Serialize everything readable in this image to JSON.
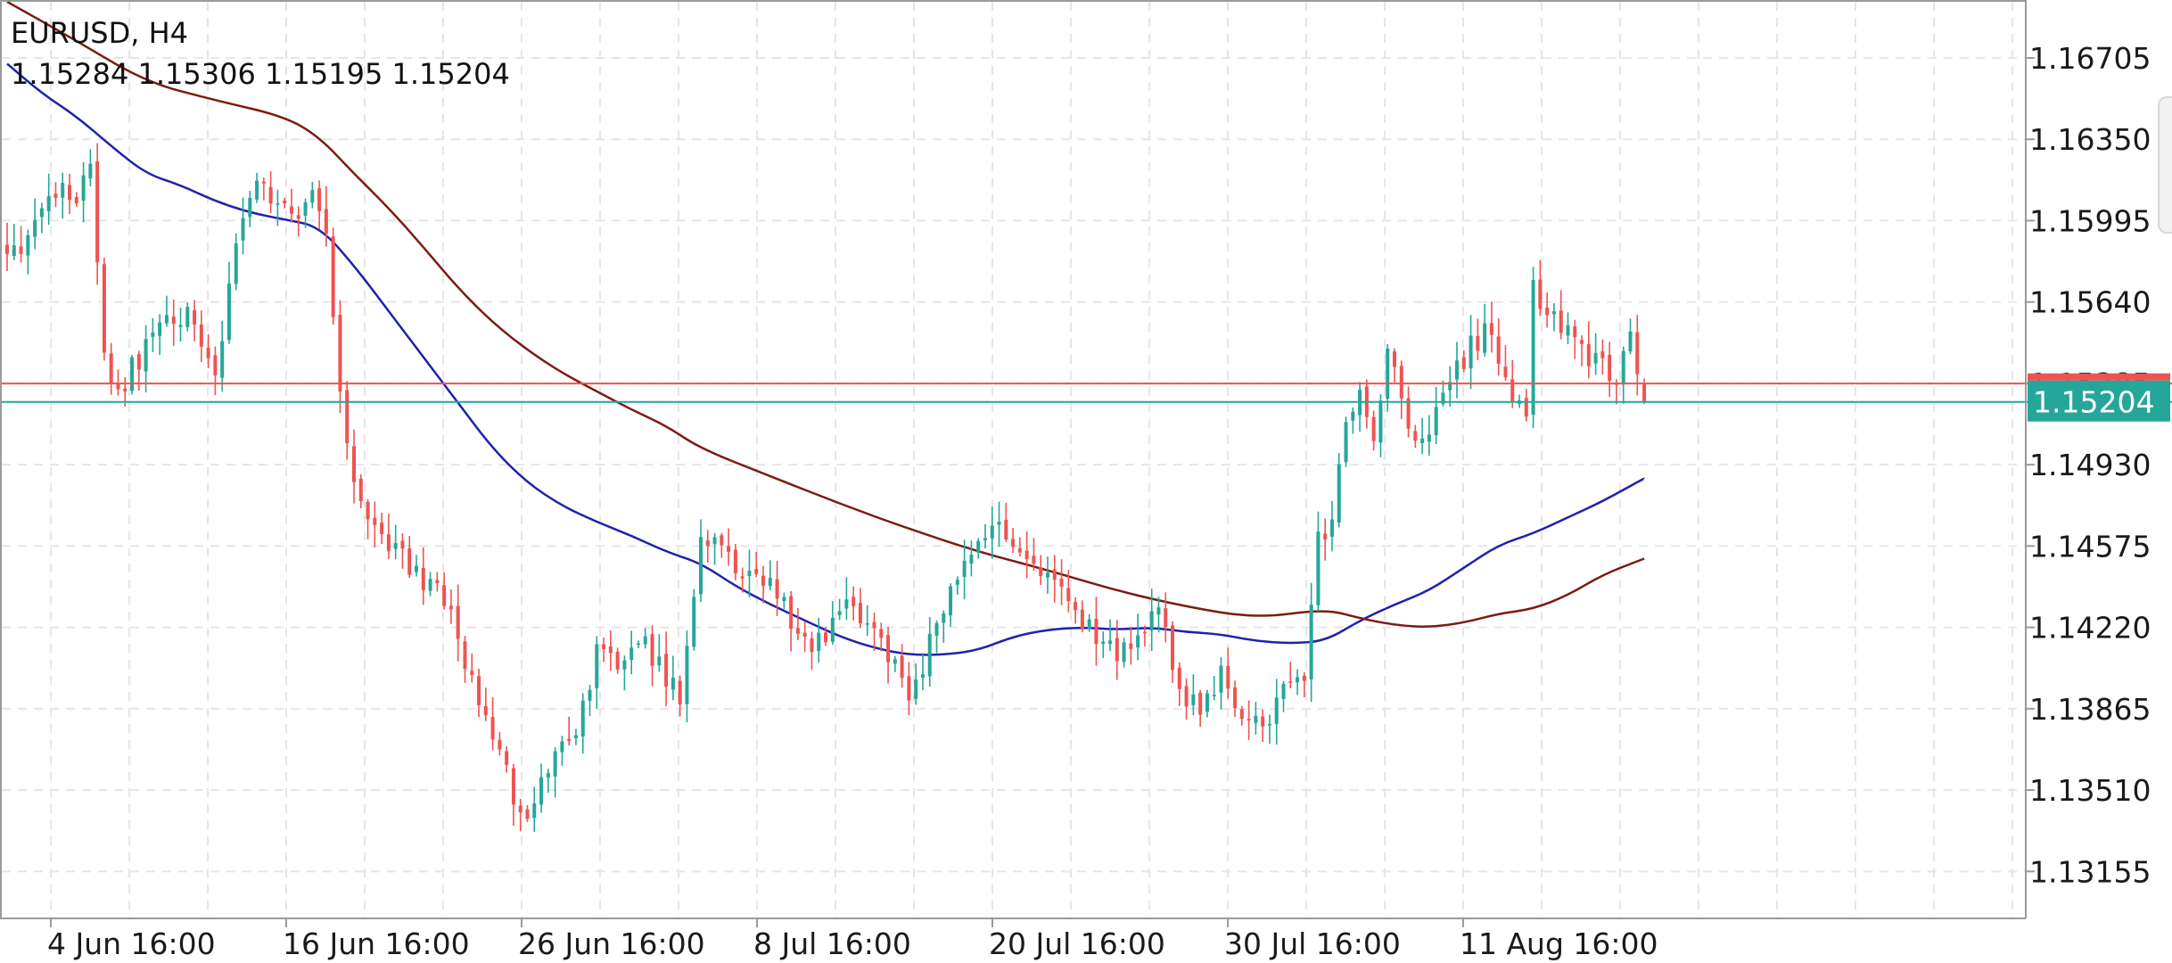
{
  "header": {
    "symbol_timeframe": "EURUSD, H4",
    "ohlc": "1.15284 1.15306 1.15195 1.15204"
  },
  "price_axis": {
    "ticks": [
      "1.16705",
      "1.16350",
      "1.15995",
      "1.15640",
      "1.15285",
      "1.14930",
      "1.14575",
      "1.14220",
      "1.13865",
      "1.13510",
      "1.13155"
    ],
    "current_price": "1.15204"
  },
  "time_axis": {
    "ticks": [
      "4 Jun 16:00",
      "16 Jun 16:00",
      "26 Jun 16:00",
      "8 Jul 16:00",
      "20 Jul 16:00",
      "30 Jul 16:00",
      "11 Aug 16:00"
    ]
  },
  "colors": {
    "bull": "#26a69a",
    "bear": "#ef5350",
    "ma_fast": "#1e22aa",
    "ma_slow": "#7b1b11",
    "bid_line": "#26a69a",
    "ask_line": "#ef5350",
    "price_tag_bg": "#26a69a",
    "grid": "#e6e6e6"
  },
  "chart_data": {
    "type": "candlestick",
    "symbol": "EURUSD",
    "timeframe": "H4",
    "ylim": [
      1.1295,
      1.1695
    ],
    "grid": true,
    "last": {
      "open": 1.15284,
      "high": 1.15306,
      "low": 1.15195,
      "close": 1.15204
    },
    "anchors": [
      [
        0,
        1.1585
      ],
      [
        4,
        1.1595
      ],
      [
        8,
        1.1615
      ],
      [
        10,
        1.1605
      ],
      [
        12,
        1.1625
      ],
      [
        14,
        1.1542
      ],
      [
        16,
        1.1522
      ],
      [
        18,
        1.1535
      ],
      [
        21,
        1.155
      ],
      [
        24,
        1.156
      ],
      [
        27,
        1.1555
      ],
      [
        30,
        1.153
      ],
      [
        33,
        1.1595
      ],
      [
        36,
        1.1615
      ],
      [
        39,
        1.1605
      ],
      [
        42,
        1.16
      ],
      [
        44,
        1.161
      ],
      [
        46,
        1.1595
      ],
      [
        48,
        1.153
      ],
      [
        50,
        1.148
      ],
      [
        52,
        1.1465
      ],
      [
        55,
        1.1455
      ],
      [
        58,
        1.145
      ],
      [
        61,
        1.144
      ],
      [
        64,
        1.143
      ],
      [
        66,
        1.1405
      ],
      [
        69,
        1.1385
      ],
      [
        72,
        1.136
      ],
      [
        74,
        1.134
      ],
      [
        76,
        1.1345
      ],
      [
        79,
        1.1365
      ],
      [
        82,
        1.138
      ],
      [
        85,
        1.141
      ],
      [
        88,
        1.1405
      ],
      [
        91,
        1.142
      ],
      [
        94,
        1.1405
      ],
      [
        97,
        1.139
      ],
      [
        100,
        1.146
      ],
      [
        103,
        1.1455
      ],
      [
        106,
        1.144
      ],
      [
        109,
        1.1445
      ],
      [
        112,
        1.143
      ],
      [
        115,
        1.1415
      ],
      [
        118,
        1.142
      ],
      [
        121,
        1.143
      ],
      [
        124,
        1.1425
      ],
      [
        127,
        1.141
      ],
      [
        130,
        1.139
      ],
      [
        133,
        1.1415
      ],
      [
        136,
        1.144
      ],
      [
        139,
        1.1455
      ],
      [
        142,
        1.147
      ],
      [
        145,
        1.1455
      ],
      [
        148,
        1.145
      ],
      [
        151,
        1.1445
      ],
      [
        154,
        1.1425
      ],
      [
        157,
        1.1418
      ],
      [
        160,
        1.1412
      ],
      [
        163,
        1.142
      ],
      [
        166,
        1.1432
      ],
      [
        169,
        1.1395
      ],
      [
        172,
        1.1385
      ],
      [
        175,
        1.14
      ],
      [
        178,
        1.1385
      ],
      [
        181,
        1.1378
      ],
      [
        184,
        1.1395
      ],
      [
        187,
        1.1395
      ],
      [
        189,
        1.146
      ],
      [
        191,
        1.147
      ],
      [
        193,
        1.1515
      ],
      [
        195,
        1.1525
      ],
      [
        197,
        1.1505
      ],
      [
        199,
        1.1545
      ],
      [
        201,
        1.152
      ],
      [
        203,
        1.1505
      ],
      [
        205,
        1.151
      ],
      [
        207,
        1.152
      ],
      [
        209,
        1.1535
      ],
      [
        211,
        1.1545
      ],
      [
        213,
        1.155
      ],
      [
        215,
        1.154
      ],
      [
        217,
        1.152
      ],
      [
        219,
        1.1515
      ],
      [
        220,
        1.157
      ],
      [
        222,
        1.156
      ],
      [
        224,
        1.1555
      ],
      [
        226,
        1.1545
      ],
      [
        228,
        1.154
      ],
      [
        230,
        1.1535
      ],
      [
        232,
        1.153
      ],
      [
        234,
        1.1555
      ],
      [
        235,
        1.1528
      ],
      [
        236,
        1.15204
      ]
    ],
    "moving_averages": [
      {
        "points": [
          [
            0,
            1.1668
          ],
          [
            5,
            1.1655
          ],
          [
            10,
            1.1645
          ],
          [
            15,
            1.1632
          ],
          [
            20,
            1.162
          ],
          [
            25,
            1.1615
          ],
          [
            30,
            1.1608
          ],
          [
            35,
            1.1603
          ],
          [
            40,
            1.16
          ],
          [
            45,
            1.1597
          ],
          [
            50,
            1.158
          ],
          [
            55,
            1.156
          ],
          [
            60,
            1.154
          ],
          [
            65,
            1.152
          ],
          [
            70,
            1.15
          ],
          [
            75,
            1.1485
          ],
          [
            80,
            1.1475
          ],
          [
            85,
            1.1468
          ],
          [
            90,
            1.1462
          ],
          [
            95,
            1.1455
          ],
          [
            100,
            1.145
          ],
          [
            105,
            1.144
          ],
          [
            110,
            1.1432
          ],
          [
            115,
            1.1425
          ],
          [
            120,
            1.1418
          ],
          [
            125,
            1.1413
          ],
          [
            130,
            1.141
          ],
          [
            135,
            1.141
          ],
          [
            140,
            1.1412
          ],
          [
            145,
            1.1418
          ],
          [
            150,
            1.1421
          ],
          [
            155,
            1.1422
          ],
          [
            160,
            1.1421
          ],
          [
            165,
            1.1422
          ],
          [
            170,
            1.142
          ],
          [
            175,
            1.1419
          ],
          [
            180,
            1.1416
          ],
          [
            185,
            1.1415
          ],
          [
            190,
            1.1416
          ],
          [
            195,
            1.1425
          ],
          [
            200,
            1.1432
          ],
          [
            205,
            1.1438
          ],
          [
            210,
            1.1448
          ],
          [
            215,
            1.1458
          ],
          [
            220,
            1.1463
          ],
          [
            225,
            1.147
          ],
          [
            230,
            1.1477
          ],
          [
            236,
            1.1487
          ]
        ]
      },
      {
        "points": [
          [
            0,
            1.1695
          ],
          [
            10,
            1.1678
          ],
          [
            20,
            1.166
          ],
          [
            30,
            1.1652
          ],
          [
            40,
            1.1645
          ],
          [
            45,
            1.1636
          ],
          [
            50,
            1.162
          ],
          [
            55,
            1.1605
          ],
          [
            60,
            1.1588
          ],
          [
            65,
            1.157
          ],
          [
            70,
            1.1555
          ],
          [
            75,
            1.1543
          ],
          [
            80,
            1.1533
          ],
          [
            85,
            1.1525
          ],
          [
            90,
            1.1517
          ],
          [
            95,
            1.151
          ],
          [
            100,
            1.15
          ],
          [
            110,
            1.1488
          ],
          [
            120,
            1.1476
          ],
          [
            130,
            1.1465
          ],
          [
            140,
            1.1455
          ],
          [
            150,
            1.1447
          ],
          [
            160,
            1.1438
          ],
          [
            170,
            1.1431
          ],
          [
            180,
            1.1426
          ],
          [
            190,
            1.143
          ],
          [
            195,
            1.1426
          ],
          [
            200,
            1.1423
          ],
          [
            205,
            1.1422
          ],
          [
            210,
            1.1424
          ],
          [
            215,
            1.1428
          ],
          [
            220,
            1.143
          ],
          [
            225,
            1.1436
          ],
          [
            230,
            1.1445
          ],
          [
            236,
            1.1452
          ]
        ]
      }
    ]
  }
}
